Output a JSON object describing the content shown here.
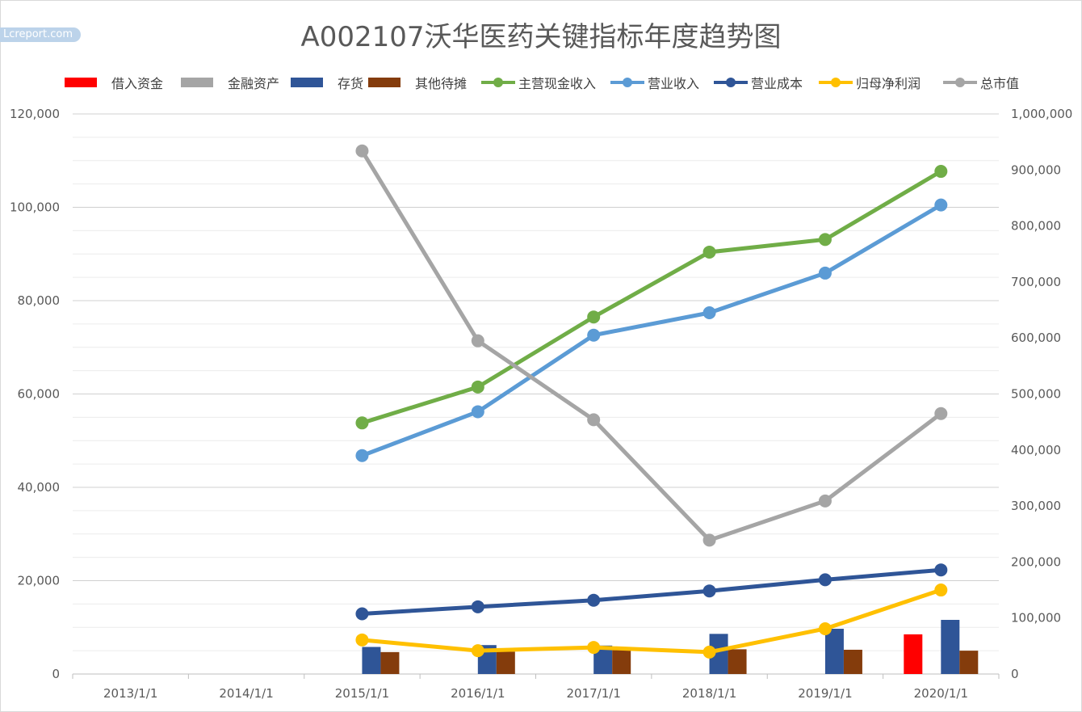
{
  "title": "A002107沃华医药关键指标年度趋势图",
  "watermark": "Lcreport.com",
  "chart_data": {
    "type": "bar+line",
    "categories": [
      "2013/1/1",
      "2014/1/1",
      "2015/1/1",
      "2016/1/1",
      "2017/1/1",
      "2018/1/1",
      "2019/1/1",
      "2020/1/1"
    ],
    "left_axis": {
      "ylim": [
        0,
        120000
      ],
      "ticks": [
        "0",
        "20,000",
        "40,000",
        "60,000",
        "80,000",
        "100,000",
        "120,000"
      ]
    },
    "right_axis": {
      "ylim": [
        0,
        1000000
      ],
      "ticks": [
        "0",
        "100,000",
        "200,000",
        "300,000",
        "400,000",
        "500,000",
        "600,000",
        "700,000",
        "800,000",
        "900,000",
        "1,000,000"
      ]
    },
    "grid": true,
    "legend_position": "top",
    "bar_series": [
      {
        "name": "借入资金",
        "color": "#ff0000",
        "values": [
          null,
          null,
          null,
          null,
          null,
          null,
          null,
          8500
        ]
      },
      {
        "name": "金融资产",
        "color": "#a5a5a5",
        "values": [
          null,
          null,
          null,
          null,
          null,
          null,
          null,
          null
        ]
      },
      {
        "name": "存货",
        "color": "#2f5597",
        "values": [
          null,
          null,
          5800,
          6200,
          6100,
          8600,
          9700,
          11600
        ]
      },
      {
        "name": "其他待摊",
        "color": "#843c0c",
        "values": [
          null,
          null,
          4700,
          4800,
          5200,
          5300,
          5200,
          5000
        ]
      }
    ],
    "line_series": [
      {
        "name": "主营现金收入",
        "color": "#70ad47",
        "axis": "left",
        "values": [
          null,
          null,
          53800,
          61500,
          76500,
          90400,
          93100,
          107700
        ]
      },
      {
        "name": "营业收入",
        "color": "#5b9bd5",
        "axis": "left",
        "values": [
          null,
          null,
          46800,
          56200,
          72600,
          77400,
          85900,
          100500
        ]
      },
      {
        "name": "营业成本",
        "color": "#2f5597",
        "axis": "left",
        "values": [
          null,
          null,
          12900,
          14400,
          15800,
          17800,
          20200,
          22300
        ]
      },
      {
        "name": "归母净利润",
        "color": "#ffc000",
        "axis": "left",
        "values": [
          null,
          null,
          7300,
          5000,
          5700,
          4700,
          9700,
          18000
        ]
      },
      {
        "name": "总市值",
        "color": "#a5a5a5",
        "axis": "right",
        "values": [
          null,
          null,
          934000,
          595000,
          454000,
          239000,
          309000,
          465000
        ]
      }
    ]
  }
}
